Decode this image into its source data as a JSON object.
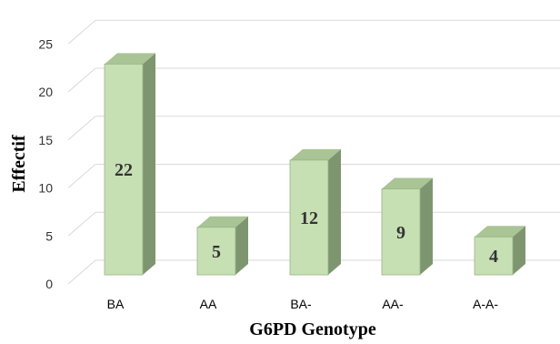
{
  "chart_data": {
    "type": "bar",
    "title": "",
    "xlabel": "G6PD Genotype",
    "ylabel": "Effectif",
    "categories": [
      "BA",
      "AA",
      "BA-",
      "AA-",
      "A-A-"
    ],
    "values": [
      22,
      5,
      12,
      9,
      4
    ],
    "data_labels": [
      "22",
      "5",
      "12",
      "9",
      "4"
    ],
    "y_ticks": [
      "0",
      "5",
      "10",
      "15",
      "20",
      "25"
    ],
    "ylim": [
      0,
      25
    ],
    "grid": true,
    "legend": "none",
    "style": "3d-column",
    "colors": {
      "bar_front": "#c6e0b4",
      "bar_side": "#7e9670",
      "bar_top": "#a9c495",
      "bar_stroke": "#98b386",
      "grid": "#d9d9d9"
    }
  }
}
